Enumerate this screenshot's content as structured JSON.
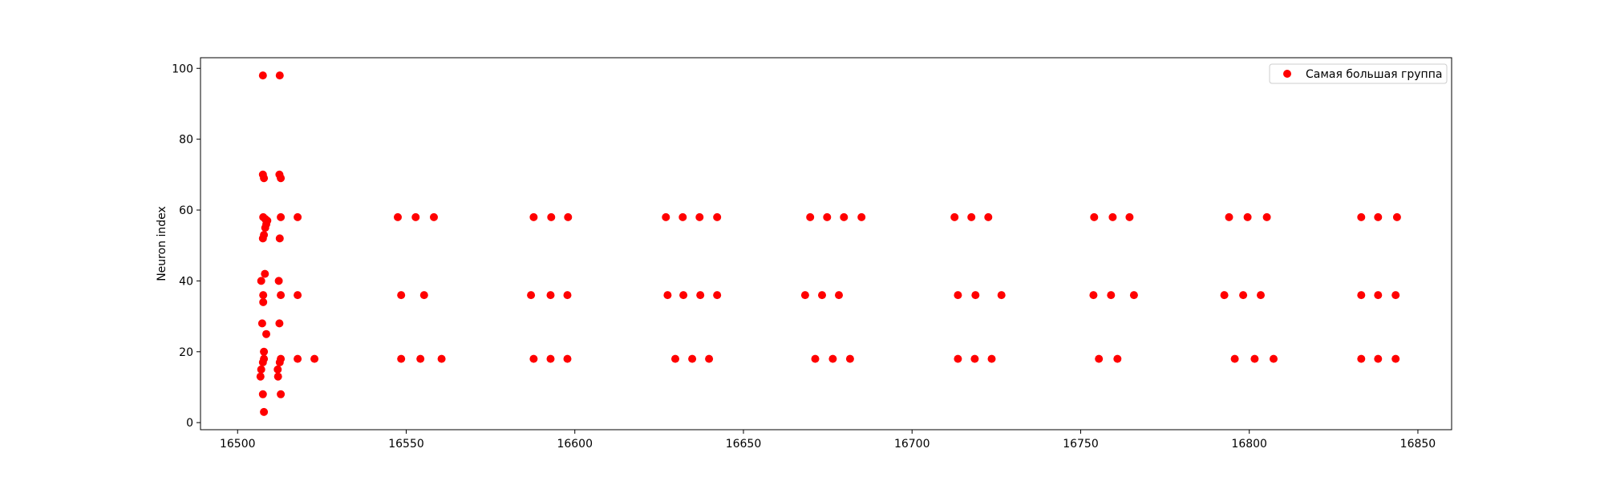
{
  "chart_data": {
    "type": "scatter",
    "title": "",
    "xlabel": "",
    "ylabel": "Neuron index",
    "xlim": [
      16489,
      16860
    ],
    "ylim": [
      -2,
      103
    ],
    "xticks": [
      16500,
      16550,
      16600,
      16650,
      16700,
      16750,
      16800,
      16850
    ],
    "yticks": [
      0,
      20,
      40,
      60,
      80,
      100
    ],
    "grid": false,
    "legend_position": "top-right",
    "series": [
      {
        "name": "Самая большая группа",
        "color": "#ff0000",
        "points": [
          [
            16507.5,
            98
          ],
          [
            16512.5,
            98
          ],
          [
            16507.5,
            70
          ],
          [
            16507.8,
            69
          ],
          [
            16512.4,
            70
          ],
          [
            16512.8,
            69
          ],
          [
            16507.6,
            58
          ],
          [
            16508.2,
            57.5
          ],
          [
            16508.8,
            57
          ],
          [
            16508.5,
            56
          ],
          [
            16508.2,
            55
          ],
          [
            16507.8,
            53
          ],
          [
            16507.5,
            52
          ],
          [
            16512.8,
            58
          ],
          [
            16517.8,
            58
          ],
          [
            16512.5,
            52
          ],
          [
            16508.1,
            42
          ],
          [
            16507.0,
            40
          ],
          [
            16512.2,
            40
          ],
          [
            16507.6,
            36
          ],
          [
            16507.6,
            34
          ],
          [
            16512.8,
            36
          ],
          [
            16517.8,
            36
          ],
          [
            16507.3,
            28
          ],
          [
            16512.4,
            28
          ],
          [
            16508.5,
            25
          ],
          [
            16507.8,
            20
          ],
          [
            16507.8,
            18
          ],
          [
            16507.5,
            17
          ],
          [
            16512.8,
            18
          ],
          [
            16512.5,
            17
          ],
          [
            16507.0,
            15
          ],
          [
            16511.9,
            15
          ],
          [
            16506.8,
            13
          ],
          [
            16512.0,
            13
          ],
          [
            16517.8,
            18
          ],
          [
            16522.8,
            18
          ],
          [
            16507.5,
            8
          ],
          [
            16512.8,
            8
          ],
          [
            16507.8,
            3
          ],
          [
            16547.5,
            58
          ],
          [
            16552.8,
            58
          ],
          [
            16558.2,
            58
          ],
          [
            16548.5,
            36
          ],
          [
            16555.3,
            36
          ],
          [
            16548.5,
            18
          ],
          [
            16554.2,
            18
          ],
          [
            16560.5,
            18
          ],
          [
            16587.8,
            58
          ],
          [
            16593.0,
            58
          ],
          [
            16598.0,
            58
          ],
          [
            16587.0,
            36
          ],
          [
            16592.8,
            36
          ],
          [
            16597.8,
            36
          ],
          [
            16587.8,
            18
          ],
          [
            16592.8,
            18
          ],
          [
            16597.8,
            18
          ],
          [
            16627.0,
            58
          ],
          [
            16632.0,
            58
          ],
          [
            16637.0,
            58
          ],
          [
            16642.2,
            58
          ],
          [
            16627.5,
            36
          ],
          [
            16632.2,
            36
          ],
          [
            16637.2,
            36
          ],
          [
            16642.2,
            36
          ],
          [
            16629.8,
            18
          ],
          [
            16634.8,
            18
          ],
          [
            16639.8,
            18
          ],
          [
            16669.8,
            58
          ],
          [
            16674.8,
            58
          ],
          [
            16679.8,
            58
          ],
          [
            16685.0,
            58
          ],
          [
            16668.3,
            36
          ],
          [
            16673.3,
            36
          ],
          [
            16678.3,
            36
          ],
          [
            16671.3,
            18
          ],
          [
            16676.5,
            18
          ],
          [
            16681.6,
            18
          ],
          [
            16712.6,
            58
          ],
          [
            16717.6,
            58
          ],
          [
            16722.6,
            58
          ],
          [
            16713.6,
            36
          ],
          [
            16718.8,
            36
          ],
          [
            16726.5,
            36
          ],
          [
            16713.6,
            18
          ],
          [
            16718.6,
            18
          ],
          [
            16723.6,
            18
          ],
          [
            16754.0,
            58
          ],
          [
            16759.5,
            58
          ],
          [
            16764.5,
            58
          ],
          [
            16753.8,
            36
          ],
          [
            16759.0,
            36
          ],
          [
            16765.8,
            36
          ],
          [
            16755.4,
            18
          ],
          [
            16760.9,
            18
          ],
          [
            16794.0,
            58
          ],
          [
            16799.5,
            58
          ],
          [
            16805.2,
            58
          ],
          [
            16792.6,
            36
          ],
          [
            16798.2,
            36
          ],
          [
            16803.4,
            36
          ],
          [
            16795.7,
            18
          ],
          [
            16801.6,
            18
          ],
          [
            16807.2,
            18
          ],
          [
            16833.2,
            58
          ],
          [
            16838.2,
            58
          ],
          [
            16843.8,
            58
          ],
          [
            16833.2,
            36
          ],
          [
            16838.2,
            36
          ],
          [
            16843.4,
            36
          ],
          [
            16833.2,
            18
          ],
          [
            16838.2,
            18
          ],
          [
            16843.4,
            18
          ]
        ]
      }
    ]
  }
}
